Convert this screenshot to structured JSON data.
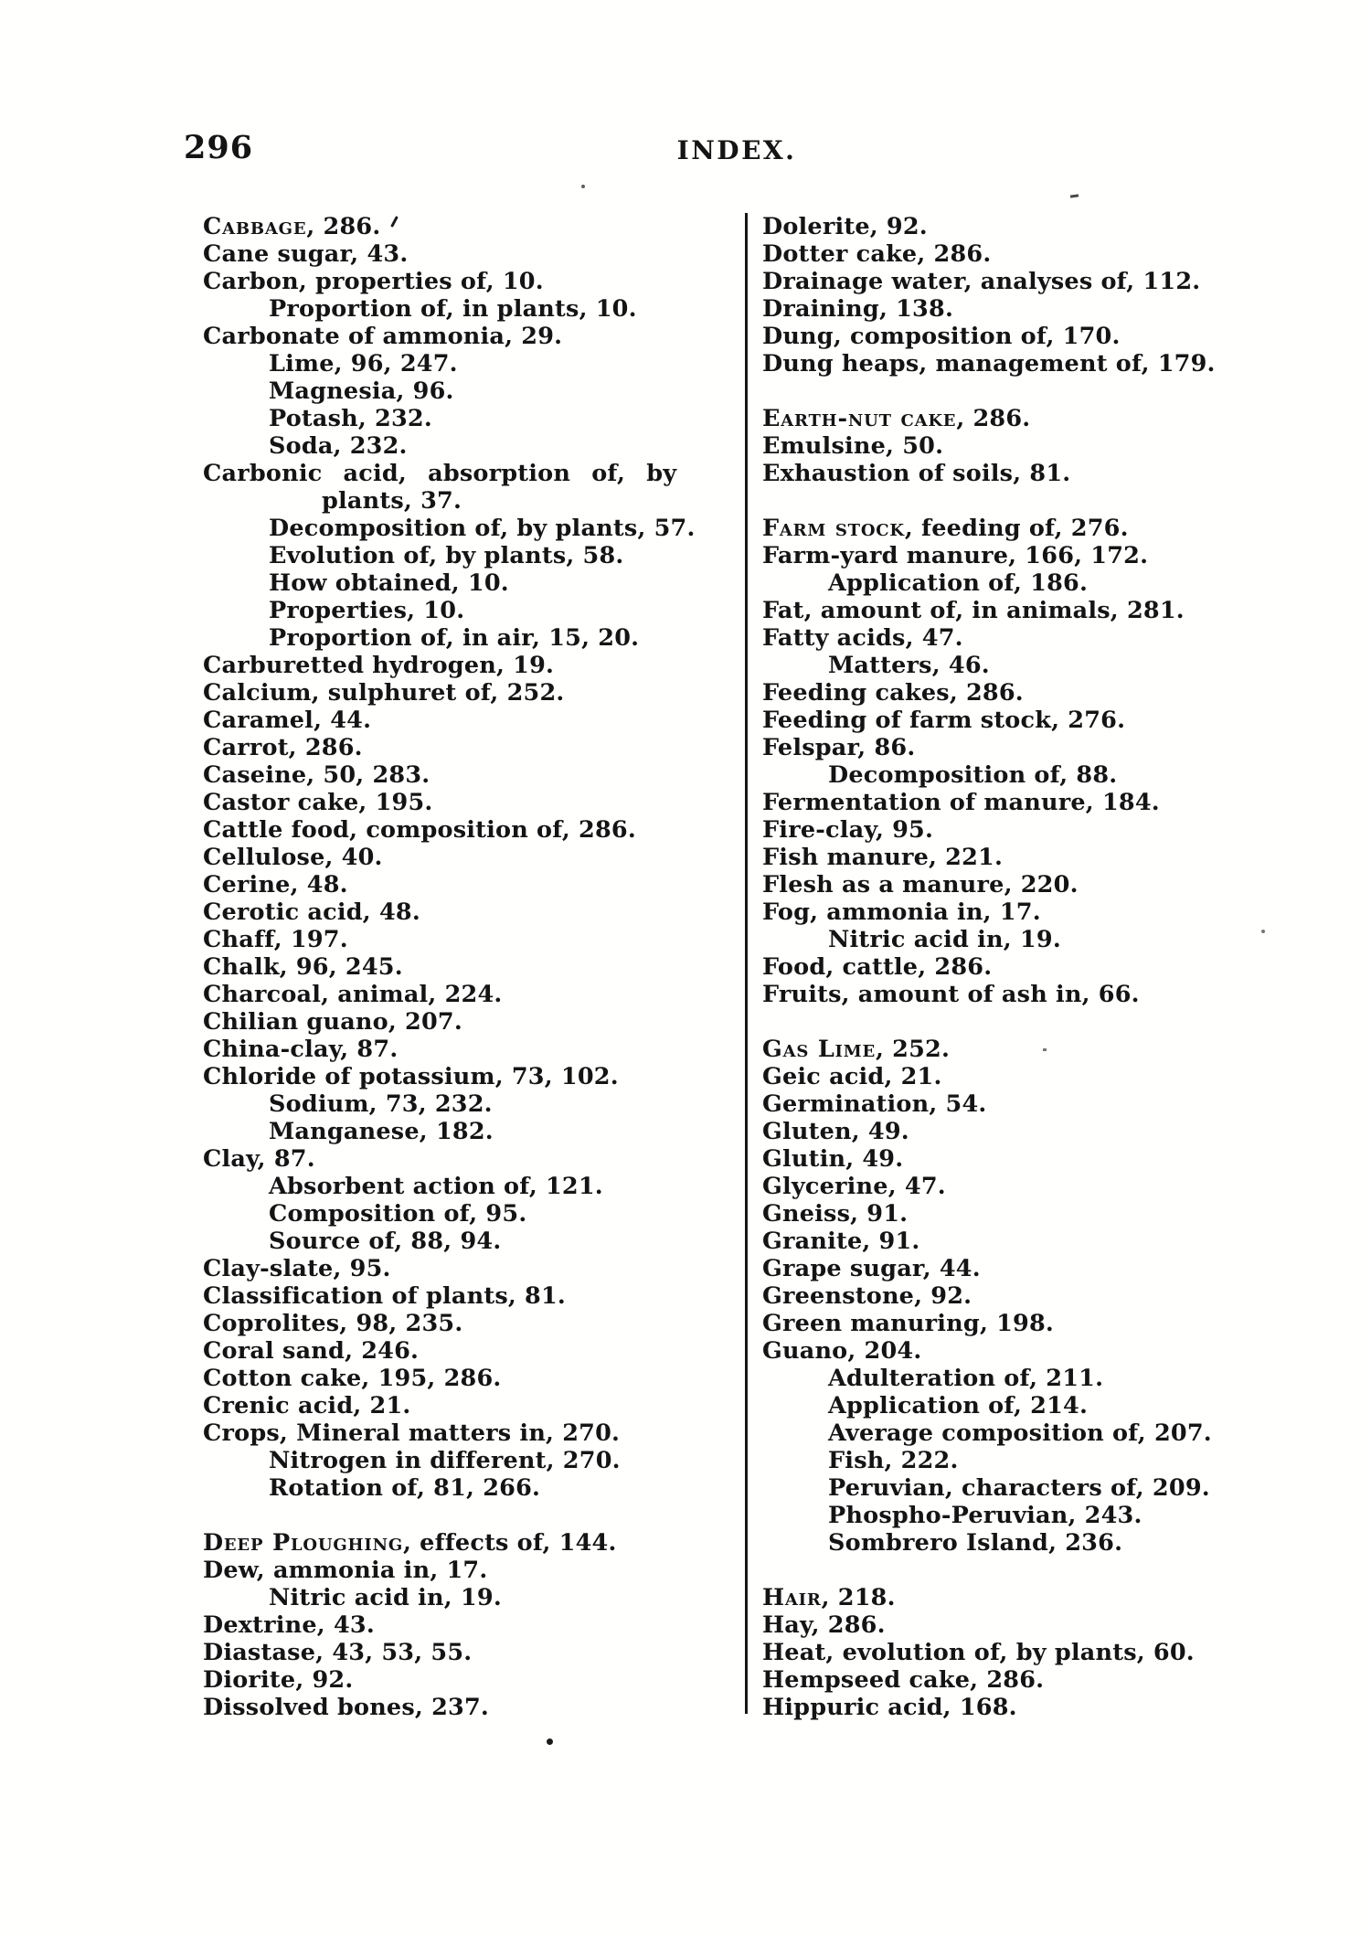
{
  "page": {
    "number": "296",
    "header_title": "INDEX."
  },
  "index": {
    "left_column": [
      {
        "sc": "Cabbage",
        "t": ", 286.",
        "i": 0
      },
      {
        "t": "Cane sugar, 43.",
        "i": 0
      },
      {
        "t": "Carbon, properties of, 10.",
        "i": 0
      },
      {
        "t": "Proportion of, in plants, 10.",
        "i": 1
      },
      {
        "t": "Carbonate of ammonia, 29.",
        "i": 0
      },
      {
        "t": "Lime, 96, 247.",
        "i": 1
      },
      {
        "t": "Magnesia, 96.",
        "i": 1
      },
      {
        "t": "Potash, 232.",
        "i": 1
      },
      {
        "t": "Soda, 232.",
        "i": 1
      },
      {
        "t": "Carbonic acid, absorption of, by",
        "i": 0,
        "wide": true
      },
      {
        "t": "plants, 37.",
        "i": 2
      },
      {
        "t": "Decomposition of, by plants, 57.",
        "i": 1
      },
      {
        "t": "Evolution of, by plants, 58.",
        "i": 1
      },
      {
        "t": "How obtained, 10.",
        "i": 1
      },
      {
        "t": "Properties, 10.",
        "i": 1
      },
      {
        "t": "Proportion of, in air, 15, 20.",
        "i": 1
      },
      {
        "t": "Carburetted hydrogen, 19.",
        "i": 0
      },
      {
        "t": "Calcium, sulphuret of, 252.",
        "i": 0
      },
      {
        "t": "Caramel, 44.",
        "i": 0
      },
      {
        "t": "Carrot, 286.",
        "i": 0
      },
      {
        "t": "Caseine, 50, 283.",
        "i": 0
      },
      {
        "t": "Castor cake, 195.",
        "i": 0
      },
      {
        "t": "Cattle food, composition of, 286.",
        "i": 0
      },
      {
        "t": "Cellulose, 40.",
        "i": 0
      },
      {
        "t": "Cerine, 48.",
        "i": 0
      },
      {
        "t": "Cerotic acid, 48.",
        "i": 0
      },
      {
        "t": "Chaff, 197.",
        "i": 0
      },
      {
        "t": "Chalk, 96, 245.",
        "i": 0
      },
      {
        "t": "Charcoal, animal, 224.",
        "i": 0
      },
      {
        "t": "Chilian guano, 207.",
        "i": 0
      },
      {
        "t": "China-clay, 87.",
        "i": 0
      },
      {
        "t": "Chloride of potassium, 73, 102.",
        "i": 0
      },
      {
        "t": "Sodium, 73, 232.",
        "i": 1
      },
      {
        "t": "Manganese, 182.",
        "i": 1
      },
      {
        "t": "Clay, 87.",
        "i": 0
      },
      {
        "t": "Absorbent action of, 121.",
        "i": 1
      },
      {
        "t": "Composition of, 95.",
        "i": 1
      },
      {
        "t": "Source of, 88, 94.",
        "i": 1
      },
      {
        "t": "Clay-slate, 95.",
        "i": 0
      },
      {
        "t": "Classification of plants, 81.",
        "i": 0
      },
      {
        "t": "Coprolites, 98, 235.",
        "i": 0
      },
      {
        "t": "Coral sand, 246.",
        "i": 0
      },
      {
        "t": "Cotton cake, 195, 286.",
        "i": 0
      },
      {
        "t": "Crenic acid, 21.",
        "i": 0
      },
      {
        "t": "Crops, Mineral matters in, 270.",
        "i": 0
      },
      {
        "t": "Nitrogen in different, 270.",
        "i": 1
      },
      {
        "t": "Rotation of, 81, 266.",
        "i": 1
      },
      {
        "gap": true
      },
      {
        "sc": "Deep Ploughing",
        "t": ", effects of, 144.",
        "i": 0
      },
      {
        "t": "Dew, ammonia in, 17.",
        "i": 0
      },
      {
        "t": "Nitric acid in, 19.",
        "i": 1
      },
      {
        "t": "Dextrine, 43.",
        "i": 0
      },
      {
        "t": "Diastase, 43, 53, 55.",
        "i": 0
      },
      {
        "t": "Diorite, 92.",
        "i": 0
      },
      {
        "t": "Dissolved bones, 237.",
        "i": 0
      }
    ],
    "right_column": [
      {
        "t": "Dolerite, 92.",
        "i": 0
      },
      {
        "t": "Dotter cake, 286.",
        "i": 0
      },
      {
        "t": "Drainage water, analyses of, 112.",
        "i": 0
      },
      {
        "t": "Draining, 138.",
        "i": 0
      },
      {
        "t": "Dung, composition of, 170.",
        "i": 0
      },
      {
        "t": "Dung heaps, management of, 179.",
        "i": 0
      },
      {
        "gap": true
      },
      {
        "sc": "Earth-nut cake",
        "t": ", 286.",
        "i": 0
      },
      {
        "t": "Emulsine, 50.",
        "i": 0
      },
      {
        "t": "Exhaustion of soils, 81.",
        "i": 0
      },
      {
        "gap": true
      },
      {
        "sc": "Farm stock",
        "t": ", feeding of, 276.",
        "i": 0
      },
      {
        "t": "Farm-yard manure, 166, 172.",
        "i": 0
      },
      {
        "t": "Application of, 186.",
        "i": 1
      },
      {
        "t": "Fat, amount of, in animals, 281.",
        "i": 0
      },
      {
        "t": "Fatty acids, 47.",
        "i": 0
      },
      {
        "t": "Matters, 46.",
        "i": 1
      },
      {
        "t": "Feeding cakes, 286.",
        "i": 0
      },
      {
        "t": "Feeding of farm stock, 276.",
        "i": 0
      },
      {
        "t": "Felspar, 86.",
        "i": 0
      },
      {
        "t": "Decomposition of, 88.",
        "i": 1
      },
      {
        "t": "Fermentation of manure, 184.",
        "i": 0
      },
      {
        "t": "Fire-clay, 95.",
        "i": 0
      },
      {
        "t": "Fish manure, 221.",
        "i": 0
      },
      {
        "t": "Flesh as a manure, 220.",
        "i": 0
      },
      {
        "t": "Fog, ammonia in, 17.",
        "i": 0
      },
      {
        "t": "Nitric acid in, 19.",
        "i": 1
      },
      {
        "t": "Food, cattle, 286.",
        "i": 0
      },
      {
        "t": "Fruits, amount of ash in, 66.",
        "i": 0
      },
      {
        "gap": true
      },
      {
        "sc": "Gas Lime",
        "t": ", 252.",
        "i": 0
      },
      {
        "t": "Geic acid, 21.",
        "i": 0
      },
      {
        "t": "Germination, 54.",
        "i": 0
      },
      {
        "t": "Gluten, 49.",
        "i": 0
      },
      {
        "t": "Glutin, 49.",
        "i": 0
      },
      {
        "t": "Glycerine, 47.",
        "i": 0
      },
      {
        "t": "Gneiss, 91.",
        "i": 0
      },
      {
        "t": "Granite, 91.",
        "i": 0
      },
      {
        "t": "Grape sugar, 44.",
        "i": 0
      },
      {
        "t": "Greenstone, 92.",
        "i": 0
      },
      {
        "t": "Green manuring, 198.",
        "i": 0
      },
      {
        "t": "Guano, 204.",
        "i": 0
      },
      {
        "t": "Adulteration of, 211.",
        "i": 1
      },
      {
        "t": "Application of, 214.",
        "i": 1
      },
      {
        "t": "Average composition of, 207.",
        "i": 1
      },
      {
        "t": "Fish, 222.",
        "i": 1
      },
      {
        "t": "Peruvian, characters of, 209.",
        "i": 1
      },
      {
        "t": "Phospho-Peruvian, 243.",
        "i": 1
      },
      {
        "t": "Sombrero Island, 236.",
        "i": 1
      },
      {
        "gap": true
      },
      {
        "sc": "Hair",
        "t": ", 218.",
        "i": 0
      },
      {
        "t": "Hay, 286.",
        "i": 0
      },
      {
        "t": "Heat, evolution of, by plants, 60.",
        "i": 0
      },
      {
        "t": "Hempseed cake, 286.",
        "i": 0
      },
      {
        "t": "Hippuric acid, 168.",
        "i": 0
      }
    ]
  }
}
